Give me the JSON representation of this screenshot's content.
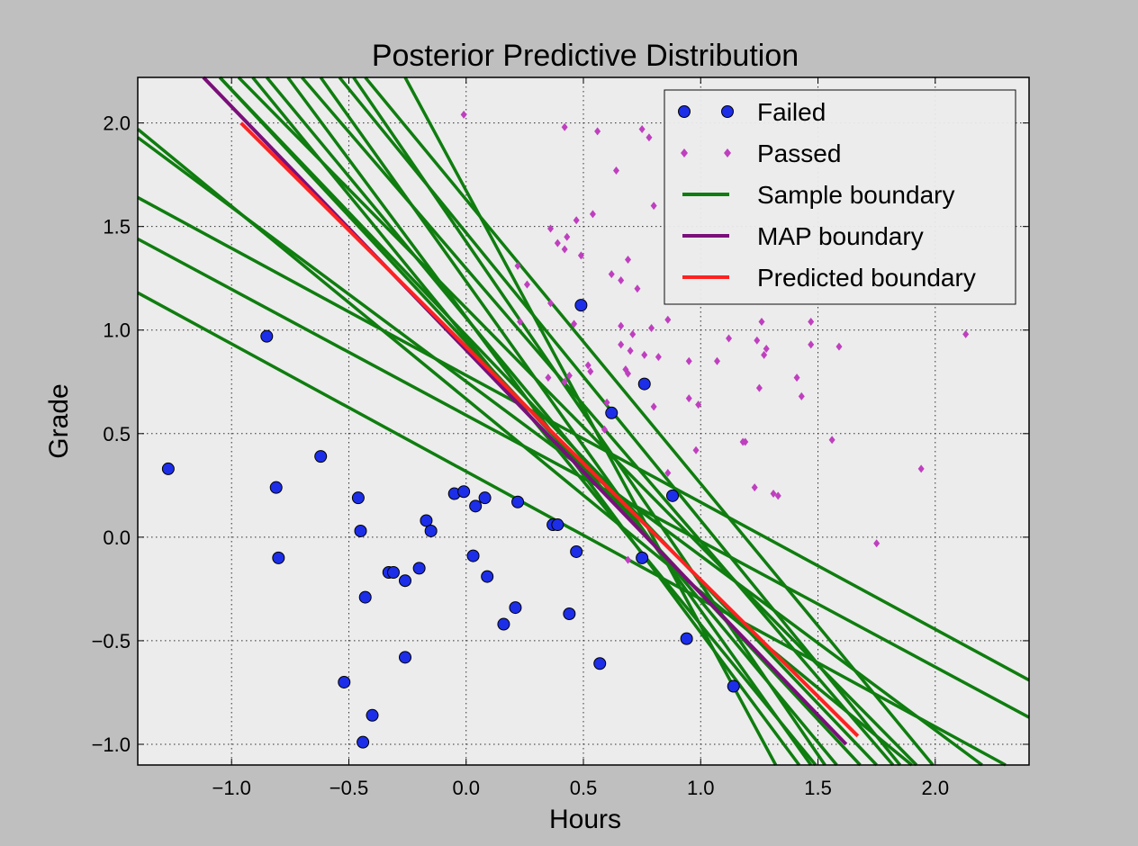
{
  "chart_data": {
    "type": "scatter",
    "title": "Posterior Predictive Distribution",
    "xlabel": "Hours",
    "ylabel": "Grade",
    "xlim": [
      -1.4,
      2.4
    ],
    "ylim": [
      -1.1,
      2.22
    ],
    "xticks": [
      -1.0,
      -0.5,
      0.0,
      0.5,
      1.0,
      1.5,
      2.0
    ],
    "xtick_labels": [
      "−1.0",
      "−0.5",
      "0.0",
      "0.5",
      "1.0",
      "1.5",
      "2.0"
    ],
    "yticks": [
      -1.0,
      -0.5,
      0.0,
      0.5,
      1.0,
      1.5,
      2.0
    ],
    "ytick_labels": [
      "−1.0",
      "−0.5",
      "0.0",
      "0.5",
      "1.0",
      "1.5",
      "2.0"
    ],
    "grid": true,
    "legend_position": "upper-right",
    "colors": {
      "failed": "#1c2ee8",
      "passed": "#bf3fbf",
      "sample": "#0f7d0f",
      "map": "#7a0f7a",
      "predicted": "#ff2222",
      "plot_bg": "#ececec",
      "figure_bg": "#bfbfbf"
    },
    "series": [
      {
        "name": "Failed",
        "kind": "points",
        "marker": "circle",
        "points": [
          [
            -1.27,
            0.33
          ],
          [
            -0.85,
            0.97
          ],
          [
            -0.81,
            0.24
          ],
          [
            -0.8,
            -0.1
          ],
          [
            -0.62,
            0.39
          ],
          [
            -0.52,
            -0.7
          ],
          [
            -0.46,
            0.19
          ],
          [
            -0.45,
            0.03
          ],
          [
            -0.44,
            -0.99
          ],
          [
            -0.43,
            -0.29
          ],
          [
            -0.4,
            -0.86
          ],
          [
            -0.33,
            -0.17
          ],
          [
            -0.31,
            -0.17
          ],
          [
            -0.26,
            -0.58
          ],
          [
            -0.26,
            -0.21
          ],
          [
            -0.2,
            -0.15
          ],
          [
            -0.17,
            0.08
          ],
          [
            -0.15,
            0.03
          ],
          [
            -0.05,
            0.21
          ],
          [
            -0.01,
            0.22
          ],
          [
            0.03,
            -0.09
          ],
          [
            0.04,
            0.15
          ],
          [
            0.08,
            0.19
          ],
          [
            0.09,
            -0.19
          ],
          [
            0.16,
            -0.42
          ],
          [
            0.21,
            -0.34
          ],
          [
            0.22,
            0.17
          ],
          [
            0.37,
            0.06
          ],
          [
            0.39,
            0.06
          ],
          [
            0.44,
            -0.37
          ],
          [
            0.47,
            -0.07
          ],
          [
            0.49,
            1.12
          ],
          [
            0.57,
            -0.61
          ],
          [
            0.62,
            0.6
          ],
          [
            0.76,
            0.74
          ],
          [
            0.75,
            -0.1
          ],
          [
            0.88,
            0.2
          ],
          [
            0.94,
            -0.49
          ],
          [
            1.14,
            -0.72
          ]
        ]
      },
      {
        "name": "Passed",
        "kind": "points",
        "marker": "diamond",
        "points": [
          [
            -0.01,
            2.04
          ],
          [
            0.42,
            1.98
          ],
          [
            0.56,
            1.96
          ],
          [
            0.75,
            1.97
          ],
          [
            0.78,
            1.93
          ],
          [
            0.64,
            1.77
          ],
          [
            0.8,
            1.6
          ],
          [
            0.54,
            1.56
          ],
          [
            0.47,
            1.53
          ],
          [
            0.36,
            1.49
          ],
          [
            0.43,
            1.45
          ],
          [
            0.39,
            1.42
          ],
          [
            0.42,
            1.39
          ],
          [
            0.49,
            1.36
          ],
          [
            0.69,
            1.34
          ],
          [
            0.22,
            1.31
          ],
          [
            0.26,
            1.22
          ],
          [
            0.62,
            1.27
          ],
          [
            0.66,
            1.24
          ],
          [
            0.73,
            1.2
          ],
          [
            0.36,
            1.13
          ],
          [
            0.23,
            1.04
          ],
          [
            0.46,
            1.03
          ],
          [
            0.66,
            1.02
          ],
          [
            0.79,
            1.01
          ],
          [
            0.71,
            0.98
          ],
          [
            0.86,
            1.05
          ],
          [
            0.66,
            0.93
          ],
          [
            0.7,
            0.9
          ],
          [
            0.76,
            0.88
          ],
          [
            0.82,
            0.87
          ],
          [
            0.52,
            0.83
          ],
          [
            0.53,
            0.8
          ],
          [
            0.68,
            0.81
          ],
          [
            0.69,
            0.79
          ],
          [
            0.44,
            0.78
          ],
          [
            0.35,
            0.77
          ],
          [
            0.42,
            0.75
          ],
          [
            0.95,
            0.85
          ],
          [
            1.07,
            0.85
          ],
          [
            1.12,
            0.96
          ],
          [
            1.24,
            0.95
          ],
          [
            1.26,
            1.04
          ],
          [
            1.28,
            0.91
          ],
          [
            1.27,
            0.88
          ],
          [
            1.47,
            1.04
          ],
          [
            1.47,
            0.93
          ],
          [
            1.59,
            0.92
          ],
          [
            2.13,
            0.98
          ],
          [
            1.25,
            0.72
          ],
          [
            1.41,
            0.77
          ],
          [
            1.43,
            0.68
          ],
          [
            0.95,
            0.67
          ],
          [
            0.99,
            0.64
          ],
          [
            0.8,
            0.63
          ],
          [
            0.6,
            0.65
          ],
          [
            0.59,
            0.52
          ],
          [
            0.98,
            0.42
          ],
          [
            1.18,
            0.46
          ],
          [
            1.19,
            0.46
          ],
          [
            1.56,
            0.47
          ],
          [
            1.94,
            0.33
          ],
          [
            1.23,
            0.24
          ],
          [
            1.31,
            0.21
          ],
          [
            1.33,
            0.2
          ],
          [
            1.75,
            -0.03
          ],
          [
            0.69,
            -0.11
          ],
          [
            0.86,
            0.31
          ]
        ]
      },
      {
        "name": "Sample boundary",
        "kind": "lines",
        "lines": [
          [
            [
              -1.4,
              1.97
            ],
            [
              1.9,
              -1.1
            ]
          ],
          [
            [
              -1.4,
              1.93
            ],
            [
              2.2,
              -1.1
            ]
          ],
          [
            [
              -1.4,
              1.64
            ],
            [
              2.4,
              -0.69
            ]
          ],
          [
            [
              -1.4,
              1.44
            ],
            [
              2.4,
              -0.87
            ]
          ],
          [
            [
              -1.4,
              1.18
            ],
            [
              2.3,
              -1.1
            ]
          ],
          [
            [
              -1.05,
              2.22
            ],
            [
              1.75,
              -1.1
            ]
          ],
          [
            [
              -0.97,
              2.22
            ],
            [
              1.92,
              -1.1
            ]
          ],
          [
            [
              -0.85,
              2.22
            ],
            [
              1.58,
              -1.1
            ]
          ],
          [
            [
              -0.76,
              2.22
            ],
            [
              1.42,
              -1.1
            ]
          ],
          [
            [
              -0.7,
              2.22
            ],
            [
              1.82,
              -1.1
            ]
          ],
          [
            [
              -0.62,
              2.22
            ],
            [
              1.47,
              -1.1
            ]
          ],
          [
            [
              -0.54,
              2.22
            ],
            [
              1.85,
              -1.1
            ]
          ],
          [
            [
              -0.48,
              2.22
            ],
            [
              1.53,
              -1.1
            ]
          ],
          [
            [
              -0.43,
              2.22
            ],
            [
              1.99,
              -1.1
            ]
          ],
          [
            [
              -0.26,
              2.22
            ],
            [
              1.32,
              -1.1
            ]
          ],
          [
            [
              -1.05,
              2.22
            ],
            [
              1.68,
              -1.1
            ]
          ],
          [
            [
              -0.91,
              2.22
            ],
            [
              1.49,
              -1.1
            ]
          ]
        ]
      },
      {
        "name": "MAP boundary",
        "kind": "lines",
        "lines": [
          [
            [
              -1.12,
              2.22
            ],
            [
              1.62,
              -1.0
            ]
          ]
        ]
      },
      {
        "name": "Predicted boundary",
        "kind": "lines",
        "lines": [
          [
            [
              -0.96,
              2.0
            ],
            [
              1.67,
              -0.96
            ]
          ]
        ]
      }
    ]
  }
}
